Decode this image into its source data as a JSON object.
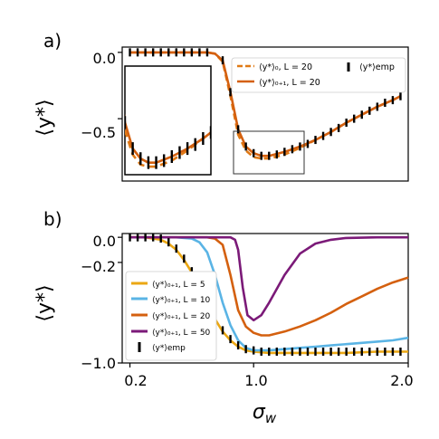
{
  "chart_data": [
    {
      "panel_label": "a)",
      "type": "line",
      "ylabel": "⟨y*⟩",
      "yticks": [
        "0.0",
        "−0.5"
      ],
      "ylim": [
        -0.97,
        0.04
      ],
      "xlim": [
        0.15,
        2.0
      ],
      "grid": false,
      "legend": {
        "placement": "top-right",
        "entries": [
          {
            "label": "⟨y*⟩₀, L = 20",
            "style": "dashed",
            "color": "#e07a16"
          },
          {
            "label": "⟨y*⟩₀₊₁, L = 20",
            "style": "solid",
            "color": "#d4600f"
          },
          {
            "label": "⟨y*⟩emp",
            "style": "errorbar",
            "color": "#000000"
          }
        ]
      },
      "series": [
        {
          "name": "⟨y*⟩₀, L = 20",
          "style": "dashed",
          "color": "#e07a16",
          "x": [
            0.2,
            0.3,
            0.4,
            0.5,
            0.6,
            0.7,
            0.75,
            0.8,
            0.85,
            0.9,
            0.95,
            1.0,
            1.05,
            1.1,
            1.2,
            1.3,
            1.4,
            1.5,
            1.6,
            1.7,
            1.8,
            1.9,
            1.95
          ],
          "y": [
            0.0,
            0.0,
            0.0,
            0.0,
            0.0,
            0.0,
            -0.01,
            -0.07,
            -0.33,
            -0.62,
            -0.74,
            -0.79,
            -0.8,
            -0.8,
            -0.77,
            -0.72,
            -0.66,
            -0.6,
            -0.53,
            -0.47,
            -0.41,
            -0.36,
            -0.33
          ]
        },
        {
          "name": "⟨y*⟩₀₊₁, L = 20",
          "style": "solid",
          "color": "#d4600f",
          "x": [
            0.2,
            0.3,
            0.4,
            0.5,
            0.6,
            0.7,
            0.75,
            0.8,
            0.85,
            0.9,
            0.95,
            1.0,
            1.05,
            1.1,
            1.2,
            1.3,
            1.4,
            1.5,
            1.6,
            1.7,
            1.8,
            1.9,
            1.95
          ],
          "y": [
            0.0,
            0.0,
            0.0,
            0.0,
            0.0,
            0.0,
            -0.01,
            -0.06,
            -0.3,
            -0.58,
            -0.71,
            -0.76,
            -0.78,
            -0.78,
            -0.75,
            -0.71,
            -0.66,
            -0.6,
            -0.53,
            -0.47,
            -0.41,
            -0.36,
            -0.33
          ]
        },
        {
          "name": "⟨y*⟩emp",
          "style": "errorbar",
          "color": "#000000",
          "x": [
            0.2,
            0.25,
            0.3,
            0.35,
            0.4,
            0.45,
            0.5,
            0.55,
            0.6,
            0.65,
            0.7,
            0.8,
            0.85,
            0.9,
            0.95,
            1.0,
            1.05,
            1.1,
            1.15,
            1.2,
            1.25,
            1.3,
            1.35,
            1.4,
            1.45,
            1.5,
            1.55,
            1.6,
            1.65,
            1.7,
            1.75,
            1.8,
            1.85,
            1.9,
            1.95
          ],
          "y": [
            0.0,
            0.0,
            0.0,
            0.0,
            0.0,
            0.0,
            0.0,
            0.0,
            0.0,
            0.0,
            0.0,
            -0.06,
            -0.3,
            -0.58,
            -0.71,
            -0.76,
            -0.78,
            -0.78,
            -0.77,
            -0.75,
            -0.73,
            -0.71,
            -0.69,
            -0.66,
            -0.63,
            -0.6,
            -0.57,
            -0.53,
            -0.5,
            -0.47,
            -0.44,
            -0.41,
            -0.38,
            -0.36,
            -0.33
          ]
        }
      ]
    },
    {
      "panel_label": "b)",
      "type": "line",
      "ylabel": "⟨y*⟩",
      "xlabel": "σw",
      "xticks": [
        "0.2",
        "1.0",
        "2.0"
      ],
      "yticks": [
        "0.0",
        "−0.2",
        "−1.0"
      ],
      "ylim": [
        -1.0,
        0.03
      ],
      "xlim": [
        0.15,
        2.0
      ],
      "grid": false,
      "legend": {
        "placement": "bottom-left",
        "entries": [
          {
            "label": "⟨y*⟩₀₊₁, L = 5",
            "color": "#eba713"
          },
          {
            "label": "⟨y*⟩₀₊₁, L = 10",
            "color": "#5ab4e5"
          },
          {
            "label": "⟨y*⟩₀₊₁, L = 20",
            "color": "#d4600f"
          },
          {
            "label": "⟨y*⟩₀₊₁, L = 50",
            "color": "#7b1a78"
          },
          {
            "label": "⟨y*⟩emp",
            "color": "#000000"
          }
        ]
      },
      "series": [
        {
          "name": "⟨y*⟩₀₊₁, L = 5",
          "color": "#eba713",
          "x": [
            0.2,
            0.3,
            0.4,
            0.45,
            0.5,
            0.55,
            0.6,
            0.65,
            0.7,
            0.75,
            0.8,
            0.85,
            0.9,
            0.95,
            1.0,
            1.1,
            1.2,
            1.4,
            1.6,
            1.8,
            2.0
          ],
          "y": [
            0.0,
            0.0,
            -0.02,
            -0.05,
            -0.1,
            -0.18,
            -0.28,
            -0.4,
            -0.53,
            -0.65,
            -0.75,
            -0.82,
            -0.87,
            -0.9,
            -0.91,
            -0.92,
            -0.92,
            -0.92,
            -0.92,
            -0.91,
            -0.91
          ]
        },
        {
          "name": "⟨y*⟩₀₊₁, L = 10",
          "color": "#5ab4e5",
          "x": [
            0.2,
            0.5,
            0.6,
            0.65,
            0.7,
            0.75,
            0.8,
            0.85,
            0.9,
            0.95,
            1.0,
            1.05,
            1.1,
            1.2,
            1.3,
            1.4,
            1.5,
            1.6,
            1.7,
            1.8,
            1.9,
            2.0
          ],
          "y": [
            0.0,
            0.0,
            -0.01,
            -0.04,
            -0.12,
            -0.3,
            -0.52,
            -0.7,
            -0.82,
            -0.88,
            -0.9,
            -0.9,
            -0.9,
            -0.89,
            -0.88,
            -0.87,
            -0.86,
            -0.85,
            -0.84,
            -0.83,
            -0.82,
            -0.8
          ]
        },
        {
          "name": "⟨y*⟩₀₊₁, L = 20",
          "color": "#d4600f",
          "x": [
            0.2,
            0.7,
            0.75,
            0.8,
            0.85,
            0.9,
            0.95,
            1.0,
            1.05,
            1.1,
            1.2,
            1.3,
            1.4,
            1.5,
            1.6,
            1.7,
            1.8,
            1.9,
            2.0
          ],
          "y": [
            0.0,
            0.0,
            -0.01,
            -0.06,
            -0.3,
            -0.58,
            -0.71,
            -0.76,
            -0.78,
            -0.78,
            -0.75,
            -0.71,
            -0.66,
            -0.6,
            -0.53,
            -0.47,
            -0.41,
            -0.36,
            -0.32
          ]
        },
        {
          "name": "⟨y*⟩₀₊₁, L = 50",
          "color": "#7b1a78",
          "x": [
            0.2,
            0.85,
            0.88,
            0.9,
            0.93,
            0.96,
            1.0,
            1.05,
            1.1,
            1.2,
            1.3,
            1.4,
            1.5,
            1.6,
            1.8,
            2.0
          ],
          "y": [
            0.0,
            0.0,
            -0.02,
            -0.1,
            -0.4,
            -0.62,
            -0.66,
            -0.62,
            -0.52,
            -0.3,
            -0.13,
            -0.05,
            -0.02,
            -0.005,
            0.0,
            0.0
          ]
        },
        {
          "name": "⟨y*⟩emp",
          "color": "#000000",
          "x": [
            0.2,
            0.25,
            0.3,
            0.35,
            0.4,
            0.45,
            0.5,
            0.55,
            0.6,
            0.65,
            0.7,
            0.75,
            0.8,
            0.85,
            0.9,
            0.95,
            1.0,
            1.05,
            1.1,
            1.15,
            1.2,
            1.25,
            1.3,
            1.35,
            1.4,
            1.45,
            1.5,
            1.55,
            1.6,
            1.65,
            1.7,
            1.75,
            1.8,
            1.85,
            1.9,
            1.95
          ],
          "y": [
            0.0,
            0.0,
            0.0,
            0.0,
            -0.01,
            -0.04,
            -0.09,
            -0.17,
            -0.27,
            -0.39,
            -0.52,
            -0.64,
            -0.74,
            -0.81,
            -0.86,
            -0.89,
            -0.9,
            -0.91,
            -0.91,
            -0.91,
            -0.91,
            -0.91,
            -0.91,
            -0.91,
            -0.91,
            -0.91,
            -0.91,
            -0.91,
            -0.91,
            -0.91,
            -0.91,
            -0.91,
            -0.91,
            -0.91,
            -0.91,
            -0.91
          ]
        }
      ]
    }
  ]
}
